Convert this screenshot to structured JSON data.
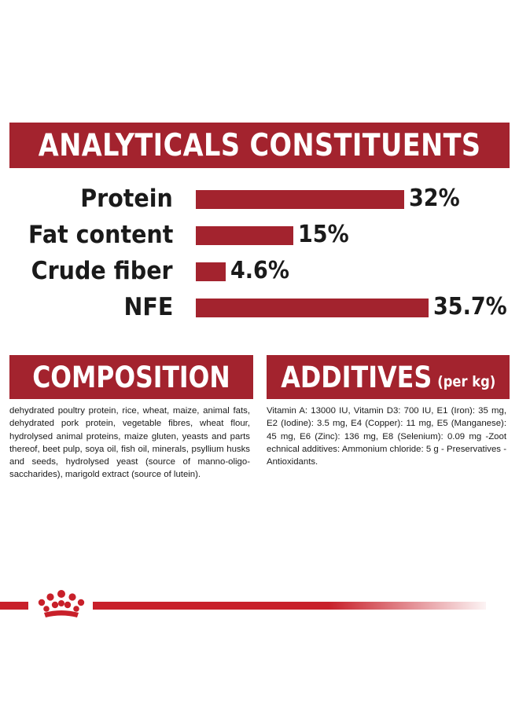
{
  "analytics": {
    "title": "ANALYTICALS CONSTITUENTS",
    "rows": [
      {
        "label": "Protein",
        "value_text": "32%",
        "value": 32
      },
      {
        "label": "Fat content",
        "value_text": "15%",
        "value": 15
      },
      {
        "label": "Crude fiber",
        "value_text": "4.6%",
        "value": 4.6
      },
      {
        "label": "NFE",
        "value_text": "35.7%",
        "value": 35.7
      }
    ]
  },
  "composition": {
    "title": "COMPOSITION",
    "text": "dehydrated poultry protein, rice, wheat, maize, animal fats, dehydrated pork protein, vegetable fibres, wheat flour, hydrolysed animal proteins, maize gluten, yeasts and parts thereof, beet pulp, soya oil, fish oil, minerals, psyllium husks and seeds, hydrolysed yeast (source of manno-oligo-saccharides), marigold extract (source of lutein)."
  },
  "additives": {
    "title": "ADDITIVES",
    "subtitle": "(per kg)",
    "text": "Vitamin A: 13000 IU, Vitamin D3: 700 IU, E1 (Iron): 35 mg, E2 (Iodine): 3.5 mg, E4 (Copper): 11 mg, E5 (Manganese): 45 mg, E6 (Zinc): 136 mg, E8 (Selenium): 0.09 mg -Zoot echnical additives: Ammonium chloride: 5 g - Preservatives - Antioxidants."
  },
  "colors": {
    "brand_red": "#a3232e",
    "footer_red": "#c8202a"
  },
  "footer": {
    "logo_icon": "crown-logo-icon"
  }
}
